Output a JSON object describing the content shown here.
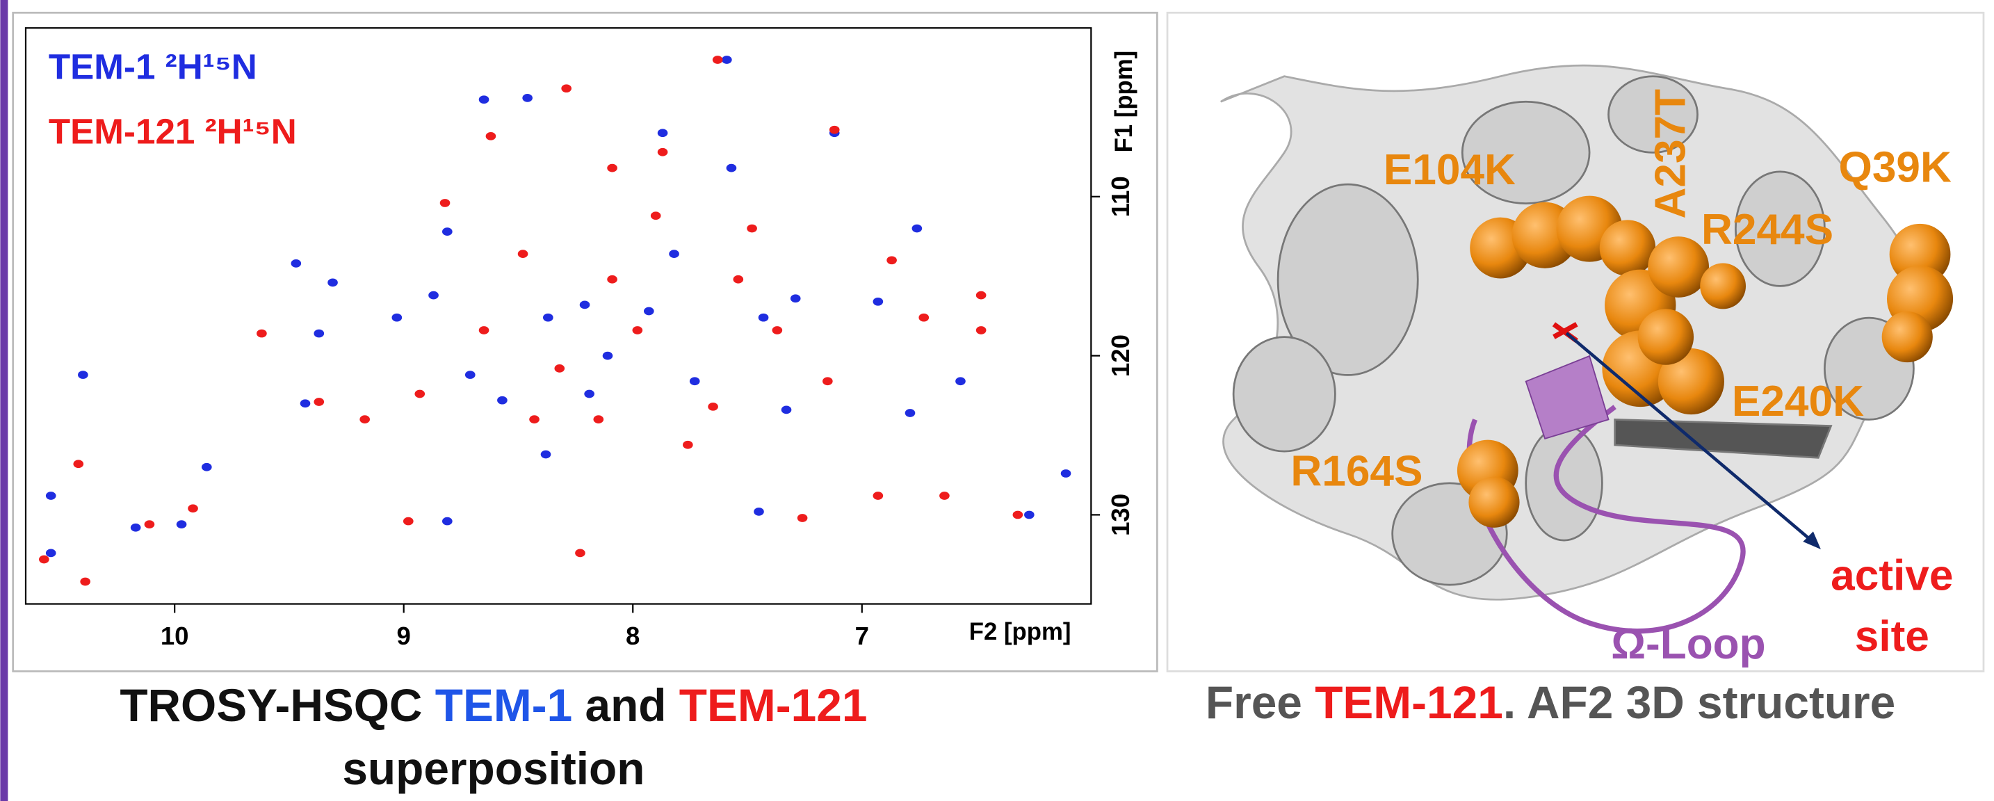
{
  "chart_data": {
    "type": "scatter",
    "xlabel": "F2 [ppm]",
    "ylabel": "F1 [ppm]",
    "xlim": [
      10.65,
      6.0
    ],
    "ylim": [
      99.4,
      135.6
    ],
    "xticks": [
      10,
      9,
      8,
      7
    ],
    "yticks": [
      110,
      120,
      130
    ],
    "series": [
      {
        "name": "TEM-1 ²H¹⁵N",
        "color": "#1f2de0",
        "x": [
          10.54,
          10.4,
          10.54,
          10.17,
          9.97,
          9.86,
          9.43,
          9.37,
          9.31,
          9.47,
          9.03,
          8.87,
          8.81,
          8.65,
          8.46,
          8.71,
          8.57,
          8.37,
          8.21,
          8.11,
          7.87,
          7.82,
          7.73,
          7.57,
          7.59,
          7.43,
          7.29,
          7.33,
          7.12,
          6.93,
          6.79,
          6.76,
          6.57,
          6.27,
          6.11,
          7.45,
          8.38,
          8.81,
          8.19,
          7.93
        ],
        "y": [
          128.8,
          121.2,
          132.4,
          130.8,
          130.6,
          127.0,
          123.0,
          118.6,
          115.4,
          114.2,
          117.6,
          116.2,
          112.2,
          103.9,
          103.8,
          121.2,
          122.8,
          117.6,
          116.8,
          120.0,
          106.0,
          113.6,
          121.6,
          108.2,
          101.4,
          117.6,
          116.4,
          123.4,
          106.0,
          116.6,
          123.6,
          112.0,
          121.6,
          130.0,
          127.4,
          129.8,
          126.2,
          130.4,
          122.4,
          117.2
        ]
      },
      {
        "name": "TEM-121 ²H¹⁵N",
        "color": "#ee1c1c",
        "x": [
          10.57,
          10.39,
          10.42,
          10.11,
          9.92,
          9.62,
          9.37,
          9.17,
          8.98,
          8.62,
          8.29,
          8.09,
          7.87,
          7.63,
          7.12,
          7.54,
          7.15,
          7.26,
          6.93,
          6.64,
          6.48,
          6.48,
          6.32,
          8.82,
          8.48,
          8.32,
          8.09,
          7.98,
          7.76,
          8.23,
          7.65,
          8.15,
          8.93,
          8.65,
          8.43,
          7.37,
          6.87,
          6.73,
          7.9,
          7.48
        ],
        "y": [
          132.8,
          134.2,
          126.8,
          130.6,
          129.6,
          118.6,
          122.9,
          124.0,
          130.4,
          106.2,
          103.2,
          108.2,
          107.2,
          101.4,
          105.8,
          115.2,
          121.6,
          130.2,
          128.8,
          128.8,
          116.2,
          118.4,
          130.0,
          110.4,
          113.6,
          120.8,
          115.2,
          118.4,
          125.6,
          132.4,
          123.2,
          124.0,
          122.4,
          118.4,
          124.0,
          118.4,
          114.0,
          117.6,
          111.2,
          112.0
        ]
      }
    ],
    "caption": {
      "line1": [
        "TROSY-HSQC",
        "TEM-1",
        "and",
        "TEM-121"
      ],
      "line2": "superposition"
    }
  },
  "structure": {
    "mutations": [
      "E104K",
      "A237T",
      "R244S",
      "Q39K",
      "E240K",
      "R164S"
    ],
    "loop_label": "Ω-Loop",
    "active_site": [
      "active",
      "site"
    ],
    "caption": [
      "Free",
      "TEM-121",
      ". AF2 3D structure"
    ]
  }
}
